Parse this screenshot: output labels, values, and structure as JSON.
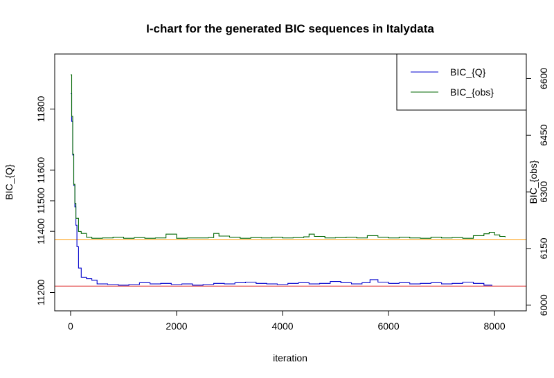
{
  "chart_data": {
    "type": "line",
    "title": "I-chart for the generated BIC sequences in Italydata",
    "xlabel": "iteration",
    "ylabel_left": "BIC_{Q}",
    "ylabel_right": "BIC_{obs}",
    "xlim": [
      -300,
      8600
    ],
    "ylim_left": [
      11140,
      11980
    ],
    "ylim_right": [
      5985,
      6665
    ],
    "x_ticks": [
      "0",
      "2000",
      "4000",
      "6000",
      "8000"
    ],
    "y_ticks_left": [
      "11200",
      "11400",
      "11500",
      "11600",
      "11800"
    ],
    "y_ticks_right": [
      "6000",
      "6150",
      "6300",
      "6450",
      "6600"
    ],
    "hlines": [
      {
        "axis": "left",
        "value": 11221,
        "color": "#dd2222"
      },
      {
        "axis": "right",
        "value": 6174,
        "color": "#ff9900"
      }
    ],
    "legend_position": "top-right",
    "series": [
      {
        "name": "BIC_{Q}",
        "axis": "left",
        "color": "#0000cc",
        "x": [
          0,
          20,
          40,
          60,
          80,
          100,
          120,
          150,
          200,
          300,
          400,
          500,
          700,
          900,
          1100,
          1300,
          1500,
          1700,
          1900,
          2100,
          2300,
          2500,
          2700,
          2900,
          3100,
          3300,
          3500,
          3700,
          3900,
          4100,
          4300,
          4500,
          4700,
          4900,
          5100,
          5300,
          5500,
          5650,
          5800,
          6000,
          6200,
          6400,
          6600,
          6800,
          7000,
          7200,
          7400,
          7600,
          7800,
          7950
        ],
        "y": [
          11850,
          11760,
          11650,
          11550,
          11480,
          11420,
          11350,
          11280,
          11250,
          11245,
          11240,
          11228,
          11226,
          11224,
          11226,
          11232,
          11228,
          11230,
          11226,
          11228,
          11224,
          11226,
          11230,
          11228,
          11232,
          11234,
          11230,
          11228,
          11226,
          11230,
          11232,
          11228,
          11230,
          11236,
          11232,
          11228,
          11232,
          11242,
          11234,
          11230,
          11232,
          11228,
          11230,
          11232,
          11228,
          11230,
          11234,
          11230,
          11224,
          11222
        ]
      },
      {
        "name": "BIC_{obs}",
        "axis": "right",
        "color": "#006600",
        "x": [
          0,
          20,
          40,
          60,
          80,
          100,
          150,
          200,
          300,
          400,
          600,
          800,
          1000,
          1200,
          1400,
          1600,
          1800,
          2000,
          2200,
          2400,
          2600,
          2700,
          2800,
          3000,
          3200,
          3400,
          3600,
          3800,
          4000,
          4200,
          4400,
          4500,
          4600,
          4800,
          5000,
          5200,
          5400,
          5600,
          5800,
          6000,
          6200,
          6400,
          6600,
          6800,
          7000,
          7200,
          7400,
          7600,
          7800,
          7900,
          8000,
          8100,
          8200
        ],
        "y": [
          6610,
          6500,
          6400,
          6320,
          6270,
          6230,
          6195,
          6190,
          6180,
          6177,
          6178,
          6180,
          6177,
          6179,
          6177,
          6178,
          6188,
          6177,
          6178,
          6178,
          6179,
          6190,
          6183,
          6180,
          6177,
          6179,
          6178,
          6180,
          6178,
          6179,
          6181,
          6188,
          6182,
          6178,
          6179,
          6180,
          6178,
          6184,
          6180,
          6178,
          6180,
          6178,
          6177,
          6180,
          6178,
          6179,
          6177,
          6184,
          6189,
          6193,
          6186,
          6182,
          6180
        ]
      }
    ]
  }
}
